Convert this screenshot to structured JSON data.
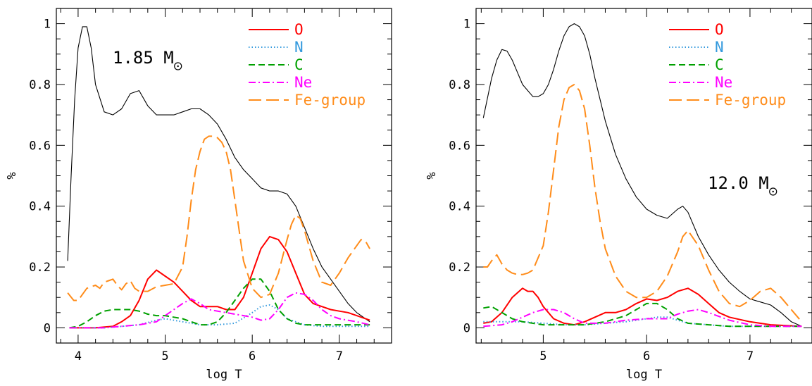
{
  "chart_data": [
    {
      "type": "line",
      "annotation": "1.85 M",
      "xlabel": "log T",
      "ylabel": "%",
      "xlim": [
        3.75,
        7.6
      ],
      "ylim": [
        -0.05,
        1.05
      ],
      "xticks": [
        "4",
        "5",
        "6",
        "7"
      ],
      "yticks": [
        "0",
        "0.2",
        "0.4",
        "0.6",
        "0.8",
        "1"
      ],
      "legend_position": "top-right",
      "series": [
        {
          "name": "",
          "color": "#000000",
          "dash": "solid",
          "x": [
            3.88,
            3.92,
            3.96,
            4.0,
            4.05,
            4.1,
            4.15,
            4.2,
            4.3,
            4.4,
            4.5,
            4.6,
            4.7,
            4.8,
            4.9,
            5.0,
            5.1,
            5.2,
            5.3,
            5.4,
            5.5,
            5.6,
            5.7,
            5.8,
            5.9,
            6.0,
            6.1,
            6.2,
            6.3,
            6.4,
            6.5,
            6.6,
            6.7,
            6.8,
            6.9,
            7.0,
            7.1,
            7.2,
            7.3,
            7.35
          ],
          "y": [
            0.22,
            0.5,
            0.75,
            0.92,
            0.99,
            0.99,
            0.92,
            0.8,
            0.71,
            0.7,
            0.72,
            0.77,
            0.78,
            0.73,
            0.7,
            0.7,
            0.7,
            0.71,
            0.72,
            0.72,
            0.7,
            0.67,
            0.62,
            0.56,
            0.52,
            0.49,
            0.46,
            0.45,
            0.45,
            0.44,
            0.4,
            0.33,
            0.26,
            0.2,
            0.16,
            0.12,
            0.08,
            0.05,
            0.03,
            0.02
          ]
        },
        {
          "name": "O",
          "color": "#ff0000",
          "dash": "solid",
          "x": [
            3.9,
            4.2,
            4.4,
            4.5,
            4.6,
            4.7,
            4.8,
            4.9,
            5.0,
            5.1,
            5.2,
            5.3,
            5.4,
            5.5,
            5.6,
            5.7,
            5.8,
            5.9,
            6.0,
            6.1,
            6.2,
            6.3,
            6.4,
            6.5,
            6.6,
            6.7,
            6.8,
            6.9,
            7.0,
            7.1,
            7.2,
            7.35
          ],
          "y": [
            0.0,
            0.0,
            0.005,
            0.02,
            0.04,
            0.09,
            0.16,
            0.19,
            0.17,
            0.15,
            0.12,
            0.09,
            0.07,
            0.07,
            0.07,
            0.06,
            0.06,
            0.1,
            0.18,
            0.26,
            0.3,
            0.29,
            0.25,
            0.18,
            0.11,
            0.08,
            0.07,
            0.06,
            0.055,
            0.05,
            0.04,
            0.025
          ]
        },
        {
          "name": "N",
          "color": "#3399dd",
          "dash": "dotted",
          "x": [
            3.9,
            4.3,
            4.5,
            4.7,
            4.9,
            5.0,
            5.2,
            5.4,
            5.6,
            5.8,
            6.0,
            6.1,
            6.2,
            6.3,
            6.4,
            6.6,
            6.8,
            7.0,
            7.2,
            7.35
          ],
          "y": [
            0.0,
            0.0,
            0.005,
            0.01,
            0.025,
            0.03,
            0.02,
            0.01,
            0.01,
            0.015,
            0.05,
            0.07,
            0.075,
            0.06,
            0.03,
            0.01,
            0.005,
            0.005,
            0.005,
            0.005
          ]
        },
        {
          "name": "C",
          "color": "#00a000",
          "dash": "dashed",
          "x": [
            3.9,
            4.0,
            4.1,
            4.2,
            4.3,
            4.4,
            4.5,
            4.6,
            4.7,
            4.8,
            4.9,
            5.0,
            5.1,
            5.2,
            5.3,
            5.4,
            5.5,
            5.6,
            5.7,
            5.8,
            5.9,
            6.0,
            6.1,
            6.2,
            6.3,
            6.4,
            6.5,
            6.6,
            6.8,
            7.0,
            7.2,
            7.35
          ],
          "y": [
            0.0,
            0.005,
            0.02,
            0.04,
            0.055,
            0.06,
            0.06,
            0.06,
            0.055,
            0.045,
            0.04,
            0.04,
            0.035,
            0.03,
            0.02,
            0.01,
            0.01,
            0.02,
            0.05,
            0.09,
            0.13,
            0.16,
            0.16,
            0.12,
            0.06,
            0.03,
            0.015,
            0.01,
            0.01,
            0.01,
            0.01,
            0.01
          ]
        },
        {
          "name": "Ne",
          "color": "#ff00ff",
          "dash": "dashdot",
          "x": [
            3.9,
            4.3,
            4.5,
            4.7,
            4.9,
            5.0,
            5.1,
            5.2,
            5.3,
            5.4,
            5.5,
            5.6,
            5.7,
            5.8,
            5.9,
            6.0,
            6.1,
            6.2,
            6.3,
            6.4,
            6.5,
            6.6,
            6.7,
            6.8,
            6.9,
            7.0,
            7.2,
            7.35
          ],
          "y": [
            0.0,
            0.0,
            0.005,
            0.01,
            0.02,
            0.04,
            0.06,
            0.08,
            0.095,
            0.08,
            0.06,
            0.055,
            0.05,
            0.045,
            0.04,
            0.035,
            0.025,
            0.03,
            0.06,
            0.1,
            0.115,
            0.11,
            0.09,
            0.06,
            0.04,
            0.03,
            0.02,
            0.01
          ]
        },
        {
          "name": "Fe-group",
          "color": "#ff8c1a",
          "dash": "longdash",
          "x": [
            3.88,
            3.95,
            4.0,
            4.05,
            4.1,
            4.15,
            4.2,
            4.25,
            4.3,
            4.35,
            4.4,
            4.45,
            4.5,
            4.55,
            4.6,
            4.65,
            4.7,
            4.8,
            4.9,
            5.0,
            5.1,
            5.2,
            5.25,
            5.3,
            5.35,
            5.4,
            5.45,
            5.5,
            5.55,
            5.6,
            5.65,
            5.7,
            5.75,
            5.8,
            5.85,
            5.9,
            6.0,
            6.1,
            6.2,
            6.3,
            6.4,
            6.45,
            6.5,
            6.55,
            6.6,
            6.7,
            6.8,
            6.9,
            7.0,
            7.1,
            7.2,
            7.25,
            7.3,
            7.35
          ],
          "y": [
            0.115,
            0.09,
            0.09,
            0.11,
            0.13,
            0.135,
            0.14,
            0.13,
            0.15,
            0.155,
            0.16,
            0.14,
            0.125,
            0.145,
            0.155,
            0.13,
            0.12,
            0.12,
            0.135,
            0.14,
            0.145,
            0.2,
            0.3,
            0.42,
            0.52,
            0.58,
            0.62,
            0.63,
            0.63,
            0.625,
            0.61,
            0.58,
            0.52,
            0.42,
            0.32,
            0.22,
            0.13,
            0.1,
            0.11,
            0.18,
            0.29,
            0.34,
            0.37,
            0.36,
            0.32,
            0.22,
            0.15,
            0.14,
            0.18,
            0.23,
            0.27,
            0.29,
            0.285,
            0.26
          ]
        }
      ]
    },
    {
      "type": "line",
      "annotation": "12.0 M",
      "xlabel": "log T",
      "ylabel": "%",
      "xlim": [
        4.35,
        7.6
      ],
      "ylim": [
        -0.05,
        1.05
      ],
      "xticks": [
        "5",
        "6",
        "7"
      ],
      "yticks": [
        "0",
        "0.2",
        "0.4",
        "0.6",
        "0.8",
        "1"
      ],
      "legend_position": "top-right",
      "series": [
        {
          "name": "",
          "color": "#000000",
          "dash": "solid",
          "x": [
            4.42,
            4.5,
            4.55,
            4.6,
            4.65,
            4.7,
            4.75,
            4.8,
            4.85,
            4.9,
            4.95,
            5.0,
            5.05,
            5.1,
            5.15,
            5.2,
            5.25,
            5.3,
            5.35,
            5.4,
            5.45,
            5.5,
            5.6,
            5.7,
            5.8,
            5.9,
            6.0,
            6.1,
            6.2,
            6.3,
            6.35,
            6.4,
            6.5,
            6.6,
            6.7,
            6.8,
            6.9,
            7.0,
            7.1,
            7.2,
            7.3,
            7.4,
            7.5
          ],
          "y": [
            0.69,
            0.82,
            0.88,
            0.915,
            0.91,
            0.88,
            0.84,
            0.8,
            0.78,
            0.76,
            0.76,
            0.77,
            0.8,
            0.85,
            0.91,
            0.96,
            0.99,
            1.0,
            0.99,
            0.96,
            0.9,
            0.82,
            0.68,
            0.57,
            0.49,
            0.43,
            0.39,
            0.37,
            0.36,
            0.39,
            0.4,
            0.38,
            0.3,
            0.24,
            0.19,
            0.15,
            0.12,
            0.095,
            0.085,
            0.075,
            0.05,
            0.02,
            0.005
          ]
        },
        {
          "name": "O",
          "color": "#ff0000",
          "dash": "solid",
          "x": [
            4.42,
            4.5,
            4.6,
            4.7,
            4.8,
            4.85,
            4.9,
            4.95,
            5.0,
            5.1,
            5.2,
            5.3,
            5.4,
            5.5,
            5.6,
            5.7,
            5.8,
            5.9,
            6.0,
            6.1,
            6.2,
            6.3,
            6.4,
            6.5,
            6.6,
            6.7,
            6.8,
            7.0,
            7.2,
            7.5
          ],
          "y": [
            0.015,
            0.02,
            0.05,
            0.1,
            0.13,
            0.12,
            0.12,
            0.1,
            0.07,
            0.03,
            0.015,
            0.01,
            0.02,
            0.035,
            0.05,
            0.05,
            0.06,
            0.08,
            0.095,
            0.09,
            0.1,
            0.12,
            0.13,
            0.11,
            0.08,
            0.05,
            0.035,
            0.02,
            0.01,
            0.005
          ]
        },
        {
          "name": "N",
          "color": "#3399dd",
          "dash": "dotted",
          "x": [
            4.42,
            4.6,
            4.8,
            5.0,
            5.2,
            5.4,
            5.6,
            5.8,
            6.0,
            6.1,
            6.2,
            6.3,
            6.4,
            6.6,
            6.8,
            7.0,
            7.2,
            7.5
          ],
          "y": [
            0.02,
            0.02,
            0.02,
            0.015,
            0.01,
            0.01,
            0.015,
            0.02,
            0.03,
            0.035,
            0.035,
            0.025,
            0.015,
            0.01,
            0.005,
            0.005,
            0.005,
            0.005
          ]
        },
        {
          "name": "C",
          "color": "#00a000",
          "dash": "dashed",
          "x": [
            4.42,
            4.5,
            4.6,
            4.7,
            4.8,
            5.0,
            5.2,
            5.4,
            5.6,
            5.8,
            5.9,
            6.0,
            6.1,
            6.2,
            6.3,
            6.4,
            6.6,
            6.8,
            7.0,
            7.2,
            7.5
          ],
          "y": [
            0.065,
            0.07,
            0.05,
            0.03,
            0.02,
            0.01,
            0.01,
            0.01,
            0.02,
            0.04,
            0.06,
            0.08,
            0.08,
            0.06,
            0.03,
            0.015,
            0.01,
            0.005,
            0.005,
            0.005,
            0.005
          ]
        },
        {
          "name": "Ne",
          "color": "#ff00ff",
          "dash": "dashdot",
          "x": [
            4.42,
            4.6,
            4.7,
            4.8,
            4.9,
            5.0,
            5.05,
            5.1,
            5.2,
            5.3,
            5.4,
            5.6,
            5.8,
            6.0,
            6.2,
            6.3,
            6.4,
            6.5,
            6.6,
            6.8,
            7.0,
            7.2,
            7.5
          ],
          "y": [
            0.005,
            0.01,
            0.02,
            0.035,
            0.05,
            0.06,
            0.06,
            0.06,
            0.05,
            0.03,
            0.015,
            0.015,
            0.025,
            0.03,
            0.03,
            0.045,
            0.055,
            0.06,
            0.05,
            0.025,
            0.01,
            0.005,
            0.005
          ]
        },
        {
          "name": "Fe-group",
          "color": "#ff8c1a",
          "dash": "longdash",
          "x": [
            4.42,
            4.46,
            4.5,
            4.55,
            4.6,
            4.65,
            4.7,
            4.75,
            4.8,
            4.85,
            4.9,
            5.0,
            5.05,
            5.1,
            5.15,
            5.2,
            5.25,
            5.3,
            5.35,
            5.4,
            5.45,
            5.5,
            5.55,
            5.6,
            5.7,
            5.8,
            5.9,
            6.0,
            6.1,
            6.2,
            6.3,
            6.35,
            6.4,
            6.5,
            6.6,
            6.7,
            6.8,
            6.9,
            7.0,
            7.1,
            7.2,
            7.3,
            7.4,
            7.5
          ],
          "y": [
            0.2,
            0.2,
            0.22,
            0.24,
            0.21,
            0.19,
            0.18,
            0.175,
            0.175,
            0.18,
            0.19,
            0.27,
            0.38,
            0.52,
            0.66,
            0.75,
            0.79,
            0.8,
            0.78,
            0.72,
            0.6,
            0.46,
            0.35,
            0.26,
            0.17,
            0.12,
            0.1,
            0.1,
            0.12,
            0.17,
            0.25,
            0.3,
            0.32,
            0.27,
            0.19,
            0.12,
            0.08,
            0.07,
            0.09,
            0.12,
            0.13,
            0.1,
            0.06,
            0.02
          ]
        }
      ]
    }
  ]
}
